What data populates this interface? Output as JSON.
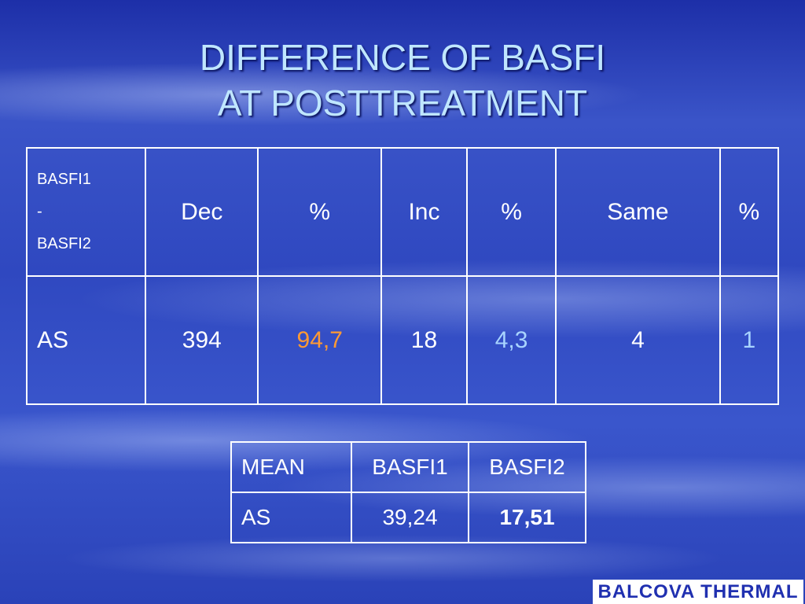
{
  "header": {
    "title_lines": [
      "DIFFERENCE OF BASFI",
      "AT POSTTREATMENT"
    ]
  },
  "table": {
    "header": [
      [
        "BASFI1",
        "-",
        "BASFI2"
      ],
      "Dec",
      "%",
      "Inc",
      "%",
      "Same",
      "%"
    ],
    "rows": [
      [
        "AS",
        "394",
        "94,7",
        "18",
        "4,3",
        "4",
        "1"
      ]
    ]
  },
  "mean_table": {
    "header": [
      "MEAN",
      "BASFI1",
      "BASFI2"
    ],
    "rows": [
      [
        "AS",
        "39,24",
        "17,51"
      ]
    ]
  },
  "logo": "BALCOVA THERMAL"
}
